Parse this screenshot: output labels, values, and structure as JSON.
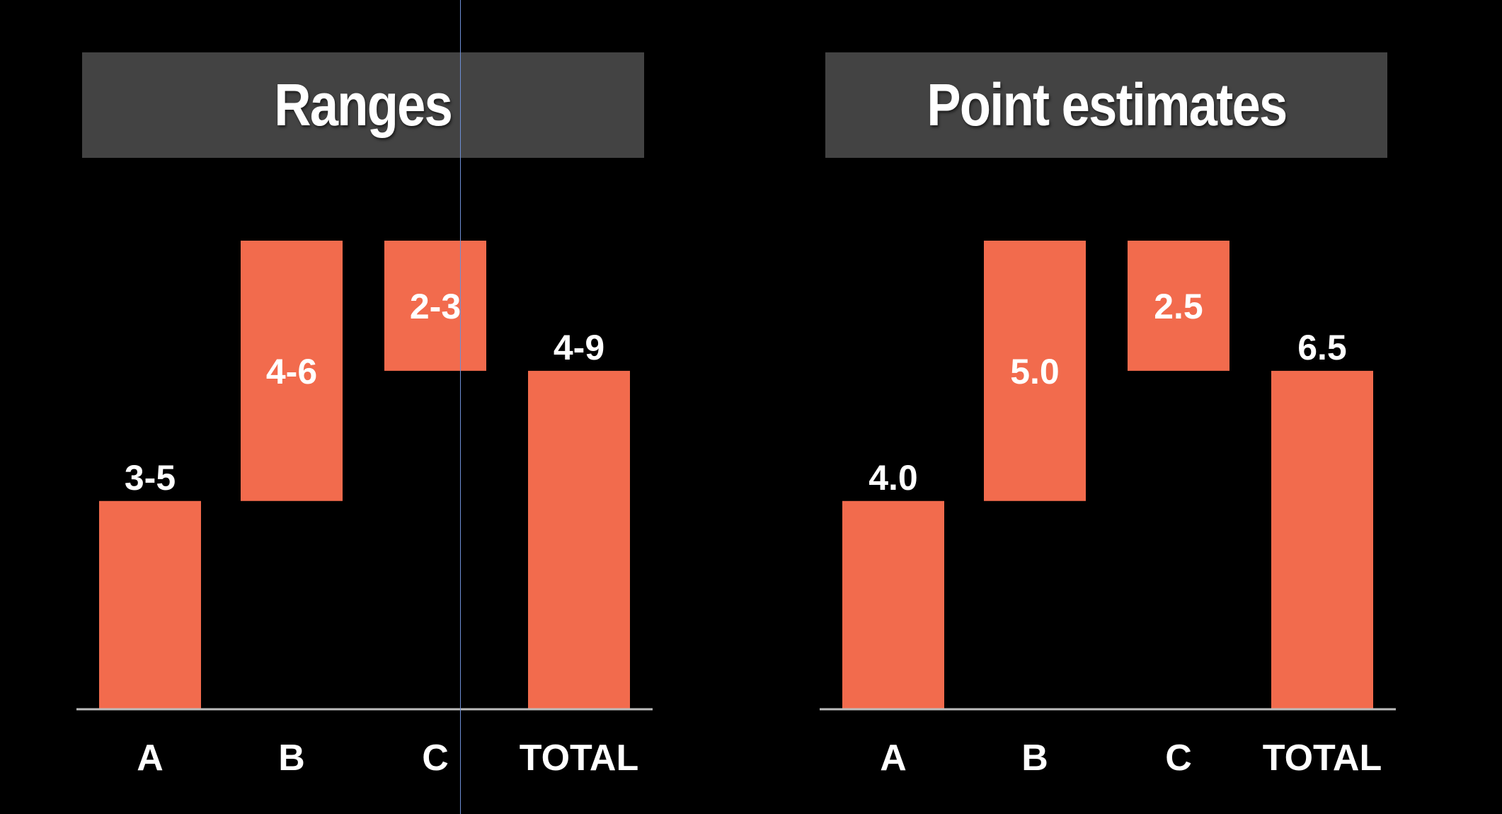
{
  "colors": {
    "background": "#000000",
    "bar": "#f26b4d",
    "title_box": "#434343",
    "axis": "#bdbdbd",
    "text": "#ffffff"
  },
  "chart_data": [
    {
      "type": "bar",
      "variant": "waterfall",
      "title": "Ranges",
      "categories": [
        "A",
        "B",
        "C",
        "TOTAL"
      ],
      "bars": [
        {
          "category": "A",
          "from": 0,
          "to": 4.0,
          "label": "3-5",
          "label_position": "above"
        },
        {
          "category": "B",
          "from": 4.0,
          "to": 9.0,
          "label": "4-6",
          "label_position": "inside"
        },
        {
          "category": "C",
          "from": 9.0,
          "to": 6.5,
          "label": "2-3",
          "label_position": "inside"
        },
        {
          "category": "TOTAL",
          "from": 0,
          "to": 6.5,
          "label": "4-9",
          "label_position": "above"
        }
      ],
      "ylim": [
        0,
        9.0
      ],
      "grid": false,
      "legend": "none"
    },
    {
      "type": "bar",
      "variant": "waterfall",
      "title": "Point estimates",
      "categories": [
        "A",
        "B",
        "C",
        "TOTAL"
      ],
      "bars": [
        {
          "category": "A",
          "from": 0,
          "to": 4.0,
          "label": "4.0",
          "label_position": "above"
        },
        {
          "category": "B",
          "from": 4.0,
          "to": 9.0,
          "label": "5.0",
          "label_position": "inside"
        },
        {
          "category": "C",
          "from": 9.0,
          "to": 6.5,
          "label": "2.5",
          "label_position": "inside"
        },
        {
          "category": "TOTAL",
          "from": 0,
          "to": 6.5,
          "label": "6.5",
          "label_position": "above"
        }
      ],
      "ylim": [
        0,
        9.0
      ],
      "grid": false,
      "legend": "none"
    }
  ]
}
